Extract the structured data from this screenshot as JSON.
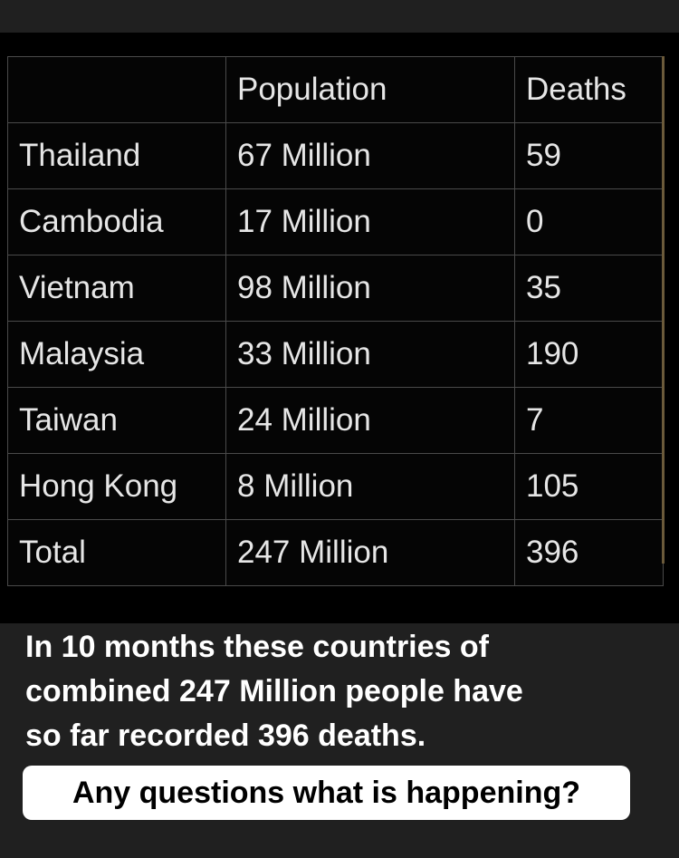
{
  "table": {
    "headers": [
      "",
      "Population",
      "Deaths"
    ],
    "rows": [
      {
        "country": "Thailand",
        "population": "67 Million",
        "deaths": "59"
      },
      {
        "country": "Cambodia",
        "population": "17 Million",
        "deaths": "0"
      },
      {
        "country": "Vietnam",
        "population": "98 Million",
        "deaths": "35"
      },
      {
        "country": "Malaysia",
        "population": "33 Million",
        "deaths": "190"
      },
      {
        "country": "Taiwan",
        "population": "24 Million",
        "deaths": "7"
      },
      {
        "country": "Hong Kong",
        "population": "8 Million",
        "deaths": "105"
      },
      {
        "country": "Total",
        "population": "247 Million",
        "deaths": "396"
      }
    ]
  },
  "caption": {
    "line1": "In 10 months these countries of",
    "line2": "combined 247 Million people have",
    "line3": "so far recorded 396 deaths."
  },
  "callout": "Any questions what is happening?",
  "colors": {
    "background": "#202020",
    "table_bg": "#000000",
    "callout_bg": "#ffffff"
  }
}
